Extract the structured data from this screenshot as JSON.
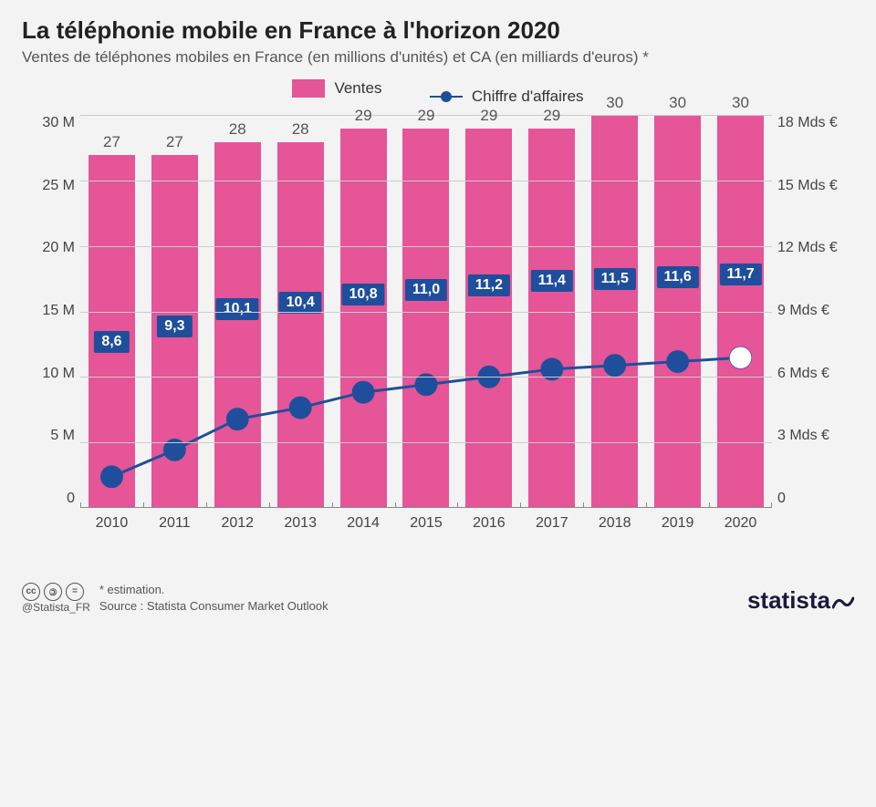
{
  "title": "La téléphonie mobile en France à l'horizon 2020",
  "subtitle": "Ventes de téléphones mobiles en France (en millions d'unités) et CA (en milliards d'euros) *",
  "legend": {
    "bar_label": "Ventes",
    "line_label": "Chiffre d'affaires"
  },
  "chart": {
    "type": "bar+line",
    "background_color": "#f3f3f3",
    "grid_color": "#cfcfcf",
    "bar_color": "#e55597",
    "line_color": "#1f4e9c",
    "marker_fill": "#1f4e9c",
    "marker_last_fill": "#ffffff",
    "badge_bg": "#1f4e9c",
    "axis_text_color": "#444444",
    "label_text_color": "#555555",
    "title_color": "#222222",
    "bar_width_pct": 74,
    "line_width": 3,
    "marker_radius": 7,
    "y_left": {
      "max": 30,
      "min": 0,
      "step": 5,
      "ticks": [
        "30 M",
        "25 M",
        "20 M",
        "15 M",
        "10 M",
        "5 M",
        "0"
      ]
    },
    "y_right": {
      "max": 18,
      "min": 0,
      "step": 3,
      "ticks": [
        "18 Mds €",
        "15 Mds €",
        "12 Mds €",
        "9 Mds €",
        "6 Mds €",
        "3 Mds €",
        "0"
      ]
    },
    "categories": [
      "2010",
      "2011",
      "2012",
      "2013",
      "2014",
      "2015",
      "2016",
      "2017",
      "2018",
      "2019",
      "2020"
    ],
    "bars": [
      27,
      27,
      28,
      28,
      29,
      29,
      29,
      29,
      30,
      30,
      30
    ],
    "bar_labels": [
      "27",
      "27",
      "28",
      "28",
      "29",
      "29",
      "29",
      "29",
      "30",
      "30",
      "30"
    ],
    "line": [
      8.6,
      9.3,
      10.1,
      10.4,
      10.8,
      11.0,
      11.2,
      11.4,
      11.5,
      11.6,
      11.7
    ],
    "line_labels": [
      "8,6",
      "9,3",
      "10,1",
      "10,4",
      "10,8",
      "11,0",
      "11,2",
      "11,4",
      "11,5",
      "11,6",
      "11,7"
    ]
  },
  "footer": {
    "handle": "@Statista_FR",
    "note": "* estimation.",
    "source": "Source : Statista Consumer Market Outlook",
    "brand": "statista"
  }
}
